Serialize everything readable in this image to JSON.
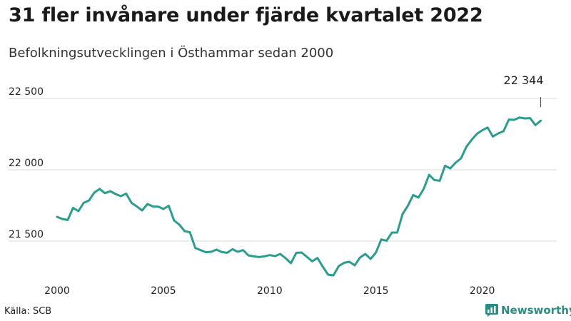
{
  "title": "31 fler invånare under fjärde kvartalet 2022",
  "subtitle": "Befolkningsutvecklingen i Östhammar sedan 2000",
  "source": "Källa: SCB",
  "brand": "Newsworthy",
  "colors": {
    "line": "#2a9d8f",
    "grid": "#d9d9d9",
    "brand": "#2a8c86"
  },
  "chart_data": {
    "type": "line",
    "title": "31 fler invånare under fjärde kvartalet 2022",
    "subtitle": "Befolkningsutvecklingen i Östhammar sedan 2000",
    "xlabel": "",
    "ylabel": "",
    "xlim": [
      2000,
      2023.0
    ],
    "ylim": [
      21250,
      22550
    ],
    "x_ticks": [
      2000,
      2005,
      2010,
      2015,
      2020
    ],
    "x_tick_labels": [
      "2000",
      "2005",
      "2010",
      "2015",
      "2020"
    ],
    "y_ticks": [
      21500,
      22000,
      22500
    ],
    "y_tick_labels": [
      "21 500",
      "22 000",
      "22 500"
    ],
    "grid": true,
    "annotation": {
      "text": "22 344",
      "x": 2022.75,
      "y": 22344
    },
    "series": [
      {
        "x": [
          2000.0,
          2000.25,
          2000.5,
          2000.75,
          2001.0,
          2001.25,
          2001.5,
          2001.75,
          2002.0,
          2002.25,
          2002.5,
          2002.75,
          2003.0,
          2003.25,
          2003.5,
          2003.75,
          2004.0,
          2004.25,
          2004.5,
          2004.75,
          2005.0,
          2005.25,
          2005.5,
          2005.75,
          2006.0,
          2006.25,
          2006.5,
          2006.75,
          2007.0,
          2007.25,
          2007.5,
          2007.75,
          2008.0,
          2008.25,
          2008.5,
          2008.75,
          2009.0,
          2009.25,
          2009.5,
          2009.75,
          2010.0,
          2010.25,
          2010.5,
          2010.75,
          2011.0,
          2011.25,
          2011.5,
          2011.75,
          2012.0,
          2012.25,
          2012.5,
          2012.75,
          2013.0,
          2013.25,
          2013.5,
          2013.75,
          2014.0,
          2014.25,
          2014.5,
          2014.75,
          2015.0,
          2015.25,
          2015.5,
          2015.75,
          2016.0,
          2016.25,
          2016.5,
          2016.75,
          2017.0,
          2017.25,
          2017.5,
          2017.75,
          2018.0,
          2018.25,
          2018.5,
          2018.75,
          2019.0,
          2019.25,
          2019.5,
          2019.75,
          2020.0,
          2020.25,
          2020.5,
          2020.75,
          2021.0,
          2021.25,
          2021.5,
          2021.75,
          2022.0,
          2022.25,
          2022.5,
          2022.75
        ],
        "values": [
          21670,
          21655,
          21648,
          21733,
          21710,
          21768,
          21785,
          21840,
          21866,
          21836,
          21850,
          21830,
          21815,
          21833,
          21768,
          21743,
          21715,
          21760,
          21743,
          21742,
          21725,
          21748,
          21645,
          21615,
          21570,
          21562,
          21452,
          21437,
          21422,
          21425,
          21440,
          21423,
          21418,
          21443,
          21425,
          21437,
          21400,
          21393,
          21388,
          21393,
          21402,
          21395,
          21410,
          21380,
          21345,
          21418,
          21420,
          21390,
          21358,
          21382,
          21320,
          21265,
          21260,
          21325,
          21348,
          21355,
          21330,
          21385,
          21410,
          21375,
          21420,
          21512,
          21502,
          21560,
          21560,
          21690,
          21747,
          21823,
          21805,
          21868,
          21965,
          21928,
          21923,
          22028,
          22010,
          22050,
          22080,
          22160,
          22210,
          22252,
          22277,
          22296,
          22233,
          22255,
          22270,
          22352,
          22350,
          22366,
          22360,
          22362,
          22313,
          22344
        ]
      }
    ]
  }
}
